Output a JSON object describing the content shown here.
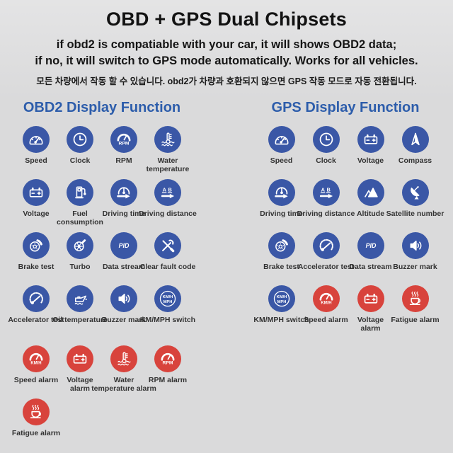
{
  "page": {
    "title": "OBD + GPS Dual Chipsets",
    "subtitle_line1": "if obd2 is compatiable with your car, it will shows OBD2 data;",
    "subtitle_line2": "if no, it will switch to GPS mode automatically. Works for all vehicles.",
    "subtitle_korean": "모든 차량에서 작동 할 수 있습니다. obd2가 차량과 호환되지 않으면 GPS 작동 모드로 자동 전환됩니다."
  },
  "colors": {
    "background": "#dadadb",
    "background_top": "#e4e4e5",
    "icon_blue": "#3a57a6",
    "icon_red": "#d8433c",
    "heading_blue": "#2d5dab",
    "title_black": "#121212",
    "label_gray": "#333333"
  },
  "sections": [
    {
      "heading": "OBD2 Display Function",
      "items": [
        {
          "label": "Speed",
          "icon": "speedometer-icon",
          "color": "blue"
        },
        {
          "label": "Clock",
          "icon": "clock-icon",
          "color": "blue"
        },
        {
          "label": "RPM",
          "icon": "rpm-gauge-icon",
          "color": "blue"
        },
        {
          "label": "Water\ntemperature",
          "icon": "water-temperature-icon",
          "color": "blue"
        },
        {
          "label": "Voltage",
          "icon": "battery-icon",
          "color": "blue"
        },
        {
          "label": "Fuel\nconsumption",
          "icon": "fuel-pump-icon",
          "color": "blue"
        },
        {
          "label": "Driving time",
          "icon": "driving-time-icon",
          "color": "blue"
        },
        {
          "label": "Driving distance",
          "icon": "driving-distance-icon",
          "color": "blue"
        },
        {
          "label": "Brake test",
          "icon": "brake-disc-icon",
          "color": "blue"
        },
        {
          "label": "Turbo",
          "icon": "turbo-icon",
          "color": "blue"
        },
        {
          "label": "Data stream",
          "icon": "pid-icon",
          "color": "blue"
        },
        {
          "label": "Clear fault code",
          "icon": "crossed-tools-icon",
          "color": "blue"
        },
        {
          "label": "Accelerator test",
          "icon": "accelerator-gauge-icon",
          "color": "blue"
        },
        {
          "label": "Oil temperature",
          "icon": "oil-can-icon",
          "color": "blue"
        },
        {
          "label": "Buzzer mark",
          "icon": "speaker-icon",
          "color": "blue"
        },
        {
          "label": "KM/MPH switch",
          "icon": "kmh-mph-switch-icon",
          "color": "blue"
        },
        {
          "label": "Speed alarm",
          "icon": "kmh-gauge-icon",
          "color": "red"
        },
        {
          "label": "Voltage\nalarm",
          "icon": "battery-icon",
          "color": "red"
        },
        {
          "label": "Water\ntemperature alarm",
          "icon": "water-temperature-icon",
          "color": "red"
        },
        {
          "label": "RPM alarm",
          "icon": "rpm-gauge-icon",
          "color": "red"
        },
        {
          "label": "Fatigue alarm",
          "icon": "coffee-cup-icon",
          "color": "red"
        }
      ]
    },
    {
      "heading": "GPS Display Function",
      "items": [
        {
          "label": "Speed",
          "icon": "speedometer-icon",
          "color": "blue"
        },
        {
          "label": "Clock",
          "icon": "clock-icon",
          "color": "blue"
        },
        {
          "label": "Voltage",
          "icon": "battery-icon",
          "color": "blue"
        },
        {
          "label": "Compass",
          "icon": "compass-icon",
          "color": "blue"
        },
        {
          "label": "Driving time",
          "icon": "driving-time-icon",
          "color": "blue"
        },
        {
          "label": "Driving distance",
          "icon": "driving-distance-icon",
          "color": "blue"
        },
        {
          "label": "Altitude",
          "icon": "altitude-icon",
          "color": "blue"
        },
        {
          "label": "Satellite number",
          "icon": "satellite-dish-icon",
          "color": "blue"
        },
        {
          "label": "Brake test",
          "icon": "brake-disc-icon",
          "color": "blue"
        },
        {
          "label": "Accelerator test",
          "icon": "accelerator-gauge-icon",
          "color": "blue"
        },
        {
          "label": "Data stream",
          "icon": "pid-icon",
          "color": "blue"
        },
        {
          "label": "Buzzer mark",
          "icon": "speaker-icon",
          "color": "blue"
        },
        {
          "label": "KM/MPH switch",
          "icon": "kmh-mph-switch-icon",
          "color": "blue"
        },
        {
          "label": "Speed alarm",
          "icon": "kmh-gauge-icon",
          "color": "red"
        },
        {
          "label": "Voltage\nalarm",
          "icon": "battery-icon",
          "color": "red"
        },
        {
          "label": "Fatigue alarm",
          "icon": "coffee-cup-icon",
          "color": "red"
        }
      ]
    }
  ]
}
